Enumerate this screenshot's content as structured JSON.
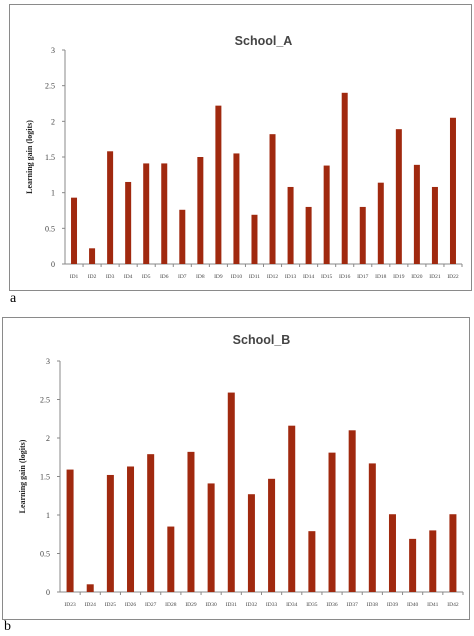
{
  "panel_labels": {
    "a": "a",
    "b": "b"
  },
  "chart_data": [
    {
      "type": "bar",
      "title": "School_A",
      "xlabel": "",
      "ylabel": "Learning gain (logits)",
      "ylim": [
        0,
        3
      ],
      "yticks": [
        "0",
        "0.5",
        "1",
        "1.5",
        "2",
        "2.5",
        "3"
      ],
      "bar_color": "#a0290f",
      "grid": false,
      "categories": [
        "ID1",
        "ID2",
        "ID3",
        "ID4",
        "ID5",
        "ID6",
        "ID7",
        "ID8",
        "ID9",
        "ID10",
        "ID11",
        "ID12",
        "ID13",
        "ID14",
        "ID15",
        "ID16",
        "ID17",
        "ID18",
        "ID19",
        "ID20",
        "ID21",
        "ID22"
      ],
      "values": [
        0.93,
        0.22,
        1.58,
        1.15,
        1.41,
        1.41,
        0.76,
        1.5,
        2.22,
        1.55,
        0.69,
        1.82,
        1.08,
        0.8,
        1.38,
        2.4,
        0.8,
        1.14,
        1.89,
        1.39,
        1.08,
        2.05
      ]
    },
    {
      "type": "bar",
      "title": "School_B",
      "xlabel": "",
      "ylabel": "Learning gain (logits)",
      "ylim": [
        0,
        3
      ],
      "yticks": [
        "0",
        "0.5",
        "1",
        "1.5",
        "2",
        "2.5",
        "3"
      ],
      "bar_color": "#a0290f",
      "grid": false,
      "categories": [
        "ID23",
        "ID24",
        "ID25",
        "ID26",
        "ID27",
        "ID28",
        "ID29",
        "ID30",
        "ID31",
        "ID32",
        "ID33",
        "ID34",
        "ID35",
        "ID36",
        "ID37",
        "ID38",
        "ID39",
        "ID40",
        "ID41",
        "ID42"
      ],
      "values": [
        1.59,
        0.1,
        1.52,
        1.63,
        1.79,
        0.85,
        1.82,
        1.41,
        2.59,
        1.27,
        1.47,
        2.16,
        0.79,
        1.81,
        2.1,
        1.67,
        1.01,
        0.69,
        0.8,
        1.01
      ]
    }
  ]
}
